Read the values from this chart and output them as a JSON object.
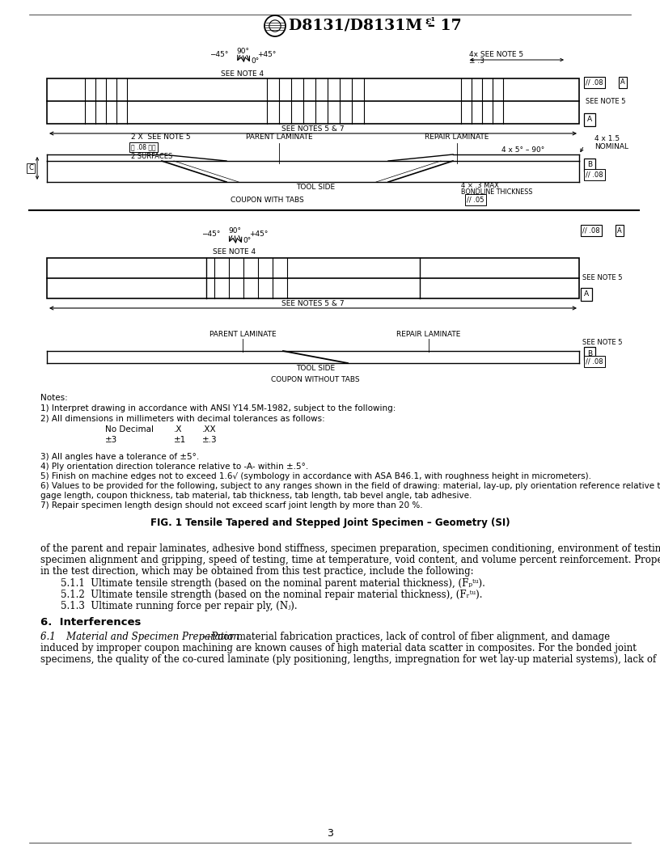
{
  "page_width": 8.16,
  "page_height": 10.56,
  "background_color": "#ffffff",
  "header_title": "D8131/D8131M – 17",
  "header_super": "ε¹",
  "page_number": "3",
  "fig_caption": "FIG. 1 Tensile Tapered and Stepped Joint Specimen – Geometry (SI)"
}
